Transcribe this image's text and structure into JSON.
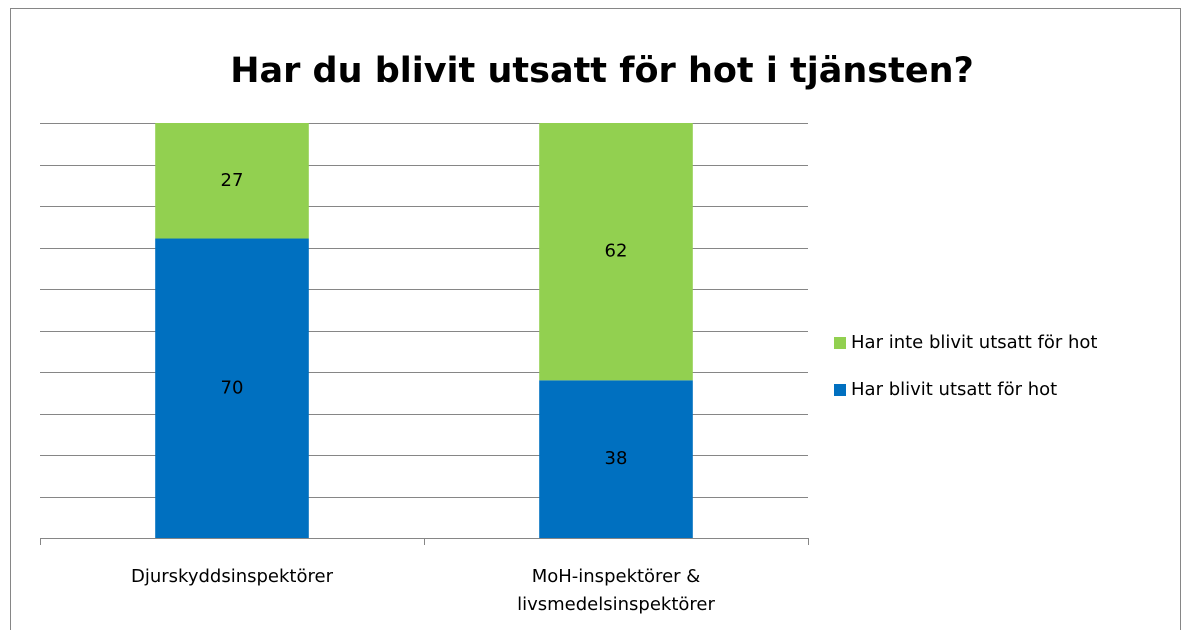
{
  "chart_data": {
    "type": "bar",
    "stacking": "percent",
    "title": "Har du blivit utsatt för hot i tjänsten?",
    "categories": [
      "Djurskyddsinspektörer",
      "MoH-inspektörer &\nlivsmedelsinspektörer"
    ],
    "series": [
      {
        "name": "Har blivit utsatt för hot",
        "color": "#0070c0",
        "values": [
          70,
          38
        ]
      },
      {
        "name": "Har inte blivit utsatt för hot",
        "color": "#92d050",
        "values": [
          27,
          62
        ]
      }
    ],
    "ylim": [
      0,
      100
    ],
    "yticks": [
      0,
      10,
      20,
      30,
      40,
      50,
      60,
      70,
      80,
      90,
      100
    ],
    "ytick_labels": false,
    "grid": true,
    "legend": "right"
  }
}
